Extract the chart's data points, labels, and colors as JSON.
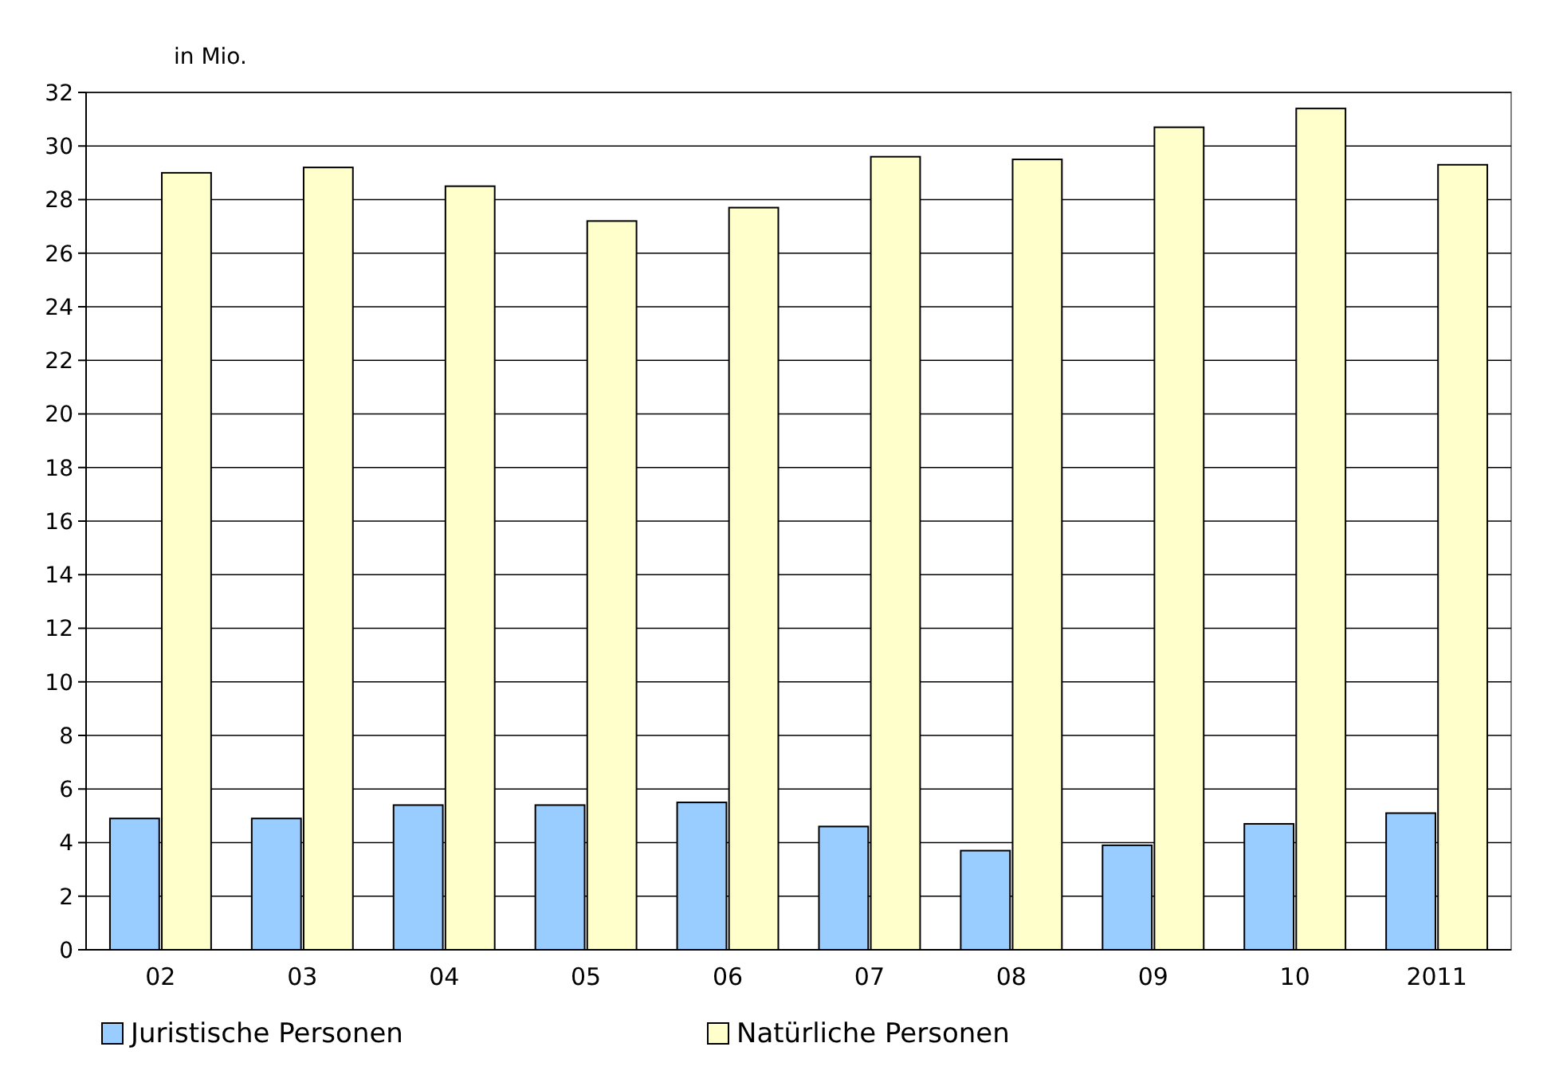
{
  "chart_data": {
    "type": "bar",
    "ylabel": "in Mio.",
    "categories": [
      "02",
      "03",
      "04",
      "05",
      "06",
      "07",
      "08",
      "09",
      "10",
      "2011"
    ],
    "series": [
      {
        "name": "Juristische Personen",
        "color": "#99ccff",
        "values": [
          4.9,
          4.9,
          5.4,
          5.4,
          5.5,
          4.6,
          3.7,
          3.9,
          4.7,
          5.1
        ]
      },
      {
        "name": "Natürliche Personen",
        "color": "#ffffcc",
        "values": [
          29.0,
          29.2,
          28.5,
          27.2,
          27.7,
          29.6,
          29.5,
          30.7,
          31.4,
          29.3
        ]
      }
    ],
    "ylim": [
      0,
      32
    ],
    "yticks": [
      0,
      2,
      4,
      6,
      8,
      10,
      12,
      14,
      16,
      18,
      20,
      22,
      24,
      26,
      28,
      30,
      32
    ],
    "grid": "y",
    "legend": "bottom"
  }
}
